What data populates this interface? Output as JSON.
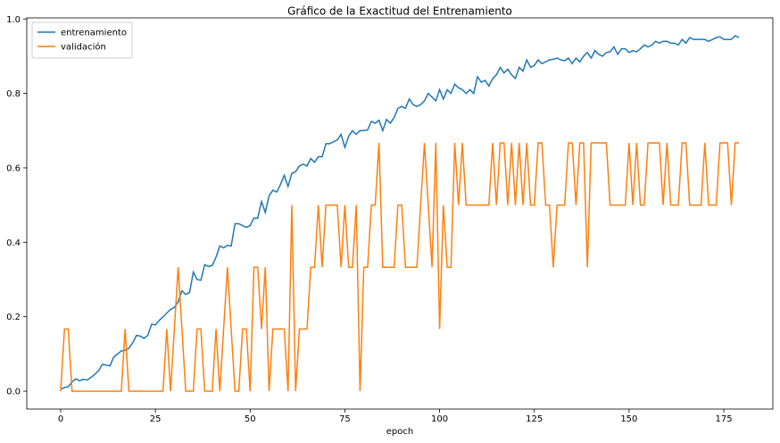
{
  "chart_data": {
    "type": "line",
    "title": "Gráfico de la Exactitud del Entrenamiento",
    "xlabel": "epoch",
    "x": [
      0,
      1,
      2,
      3,
      4,
      5,
      6,
      7,
      8,
      9,
      10,
      11,
      12,
      13,
      14,
      15,
      16,
      17,
      18,
      19,
      20,
      21,
      22,
      23,
      24,
      25,
      26,
      27,
      28,
      29,
      30,
      31,
      32,
      33,
      34,
      35,
      36,
      37,
      38,
      39,
      40,
      41,
      42,
      43,
      44,
      45,
      46,
      47,
      48,
      49,
      50,
      51,
      52,
      53,
      54,
      55,
      56,
      57,
      58,
      59,
      60,
      61,
      62,
      63,
      64,
      65,
      66,
      67,
      68,
      69,
      70,
      71,
      72,
      73,
      74,
      75,
      76,
      77,
      78,
      79,
      80,
      81,
      82,
      83,
      84,
      85,
      86,
      87,
      88,
      89,
      90,
      91,
      92,
      93,
      94,
      95,
      96,
      97,
      98,
      99,
      100,
      101,
      102,
      103,
      104,
      105,
      106,
      107,
      108,
      109,
      110,
      111,
      112,
      113,
      114,
      115,
      116,
      117,
      118,
      119,
      120,
      121,
      122,
      123,
      124,
      125,
      126,
      127,
      128,
      129,
      130,
      131,
      132,
      133,
      134,
      135,
      136,
      137,
      138,
      139,
      140,
      141,
      142,
      143,
      144,
      145,
      146,
      147,
      148,
      149,
      150,
      151,
      152,
      153,
      154,
      155,
      156,
      157,
      158,
      159,
      160,
      161,
      162,
      163,
      164,
      165,
      166,
      167,
      168,
      169,
      170,
      171,
      172,
      173,
      174,
      175,
      176,
      177,
      178,
      179
    ],
    "series": [
      {
        "name": "entrenamiento",
        "color": "#1f77b4",
        "values": [
          0.005,
          0.01,
          0.012,
          0.025,
          0.033,
          0.028,
          0.032,
          0.03,
          0.037,
          0.045,
          0.055,
          0.072,
          0.07,
          0.068,
          0.092,
          0.1,
          0.108,
          0.11,
          0.115,
          0.13,
          0.15,
          0.148,
          0.142,
          0.15,
          0.18,
          0.178,
          0.19,
          0.2,
          0.21,
          0.22,
          0.225,
          0.24,
          0.27,
          0.26,
          0.265,
          0.32,
          0.3,
          0.298,
          0.34,
          0.335,
          0.338,
          0.36,
          0.39,
          0.385,
          0.392,
          0.39,
          0.45,
          0.45,
          0.445,
          0.44,
          0.445,
          0.465,
          0.465,
          0.51,
          0.48,
          0.525,
          0.54,
          0.535,
          0.555,
          0.58,
          0.55,
          0.585,
          0.59,
          0.605,
          0.61,
          0.605,
          0.625,
          0.615,
          0.63,
          0.63,
          0.665,
          0.665,
          0.67,
          0.675,
          0.69,
          0.655,
          0.685,
          0.7,
          0.69,
          0.7,
          0.7,
          0.702,
          0.725,
          0.72,
          0.728,
          0.7,
          0.73,
          0.72,
          0.735,
          0.76,
          0.765,
          0.76,
          0.785,
          0.77,
          0.765,
          0.77,
          0.78,
          0.8,
          0.79,
          0.78,
          0.81,
          0.785,
          0.81,
          0.8,
          0.825,
          0.815,
          0.81,
          0.8,
          0.81,
          0.8,
          0.845,
          0.83,
          0.835,
          0.82,
          0.84,
          0.85,
          0.87,
          0.855,
          0.865,
          0.85,
          0.84,
          0.87,
          0.86,
          0.89,
          0.87,
          0.875,
          0.89,
          0.88,
          0.885,
          0.89,
          0.892,
          0.895,
          0.89,
          0.888,
          0.895,
          0.88,
          0.895,
          0.885,
          0.9,
          0.91,
          0.895,
          0.915,
          0.905,
          0.9,
          0.91,
          0.912,
          0.925,
          0.905,
          0.92,
          0.92,
          0.91,
          0.915,
          0.912,
          0.92,
          0.93,
          0.925,
          0.93,
          0.94,
          0.935,
          0.94,
          0.94,
          0.935,
          0.935,
          0.93,
          0.945,
          0.935,
          0.95,
          0.945,
          0.945,
          0.945,
          0.945,
          0.94,
          0.945,
          0.95,
          0.952,
          0.945,
          0.945,
          0.945,
          0.955,
          0.95
        ]
      },
      {
        "name": "validación",
        "color": "#ff7f0e",
        "values": [
          0,
          0.167,
          0.167,
          0,
          0,
          0,
          0,
          0,
          0,
          0,
          0,
          0,
          0,
          0,
          0,
          0,
          0,
          0.167,
          0,
          0,
          0,
          0,
          0,
          0,
          0,
          0,
          0,
          0,
          0.167,
          0,
          0.167,
          0.333,
          0.167,
          0,
          0,
          0,
          0.167,
          0.167,
          0,
          0,
          0,
          0.167,
          0,
          0.167,
          0.333,
          0.167,
          0,
          0,
          0.167,
          0.167,
          0,
          0.333,
          0.333,
          0.167,
          0.333,
          0,
          0.167,
          0.167,
          0.167,
          0.167,
          0,
          0.5,
          0,
          0.167,
          0.167,
          0.167,
          0.333,
          0.333,
          0.5,
          0.333,
          0.5,
          0.5,
          0.5,
          0.5,
          0.333,
          0.5,
          0.333,
          0.333,
          0.5,
          0,
          0.333,
          0.333,
          0.5,
          0.5,
          0.667,
          0.333,
          0.333,
          0.333,
          0.333,
          0.5,
          0.5,
          0.333,
          0.333,
          0.333,
          0.333,
          0.5,
          0.667,
          0.5,
          0.333,
          0.667,
          0.167,
          0.5,
          0.333,
          0.333,
          0.667,
          0.5,
          0.667,
          0.5,
          0.5,
          0.5,
          0.5,
          0.5,
          0.5,
          0.5,
          0.667,
          0.5,
          0.667,
          0.667,
          0.5,
          0.667,
          0.5,
          0.667,
          0.5,
          0.667,
          0.5,
          0.5,
          0.667,
          0.667,
          0.5,
          0.5,
          0.333,
          0.5,
          0.5,
          0.5,
          0.667,
          0.667,
          0.5,
          0.667,
          0.667,
          0.333,
          0.667,
          0.667,
          0.667,
          0.667,
          0.667,
          0.5,
          0.5,
          0.5,
          0.5,
          0.5,
          0.667,
          0.5,
          0.667,
          0.5,
          0.5,
          0.667,
          0.667,
          0.667,
          0.667,
          0.5,
          0.667,
          0.5,
          0.5,
          0.5,
          0.667,
          0.667,
          0.5,
          0.5,
          0.5,
          0.5,
          0.667,
          0.5,
          0.5,
          0.5,
          0.667,
          0.667,
          0.667,
          0.5,
          0.667,
          0.667
        ]
      }
    ],
    "xlim": [
      -8.95,
      187.95
    ],
    "xticks": [
      0,
      25,
      50,
      75,
      100,
      125,
      150,
      175
    ],
    "ylim": [
      -0.048,
      1.003
    ],
    "yticks": [
      {
        "value": 0,
        "label": "0.0"
      },
      {
        "value": 0.2,
        "label": "0.2"
      },
      {
        "value": 0.4,
        "label": "0.4"
      },
      {
        "value": 0.6,
        "label": "0.6"
      },
      {
        "value": 0.8,
        "label": "0.8"
      },
      {
        "value": 1,
        "label": "1.0"
      }
    ],
    "legend": "upper left",
    "grid": false
  }
}
